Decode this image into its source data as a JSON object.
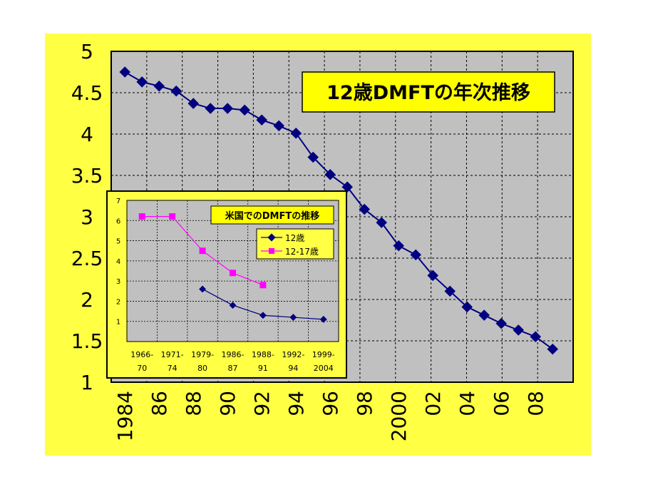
{
  "chart_data": [
    {
      "type": "line",
      "title": "12歳DMFTの年次推移",
      "xlabel": "",
      "ylabel": "",
      "x": [
        1984,
        1985,
        1986,
        1987,
        1988,
        1989,
        1990,
        1991,
        1992,
        1993,
        1994,
        1995,
        1996,
        1997,
        1998,
        1999,
        2000,
        2001,
        2002,
        2003,
        2004,
        2005,
        2006,
        2007,
        2008,
        2009
      ],
      "series": [
        {
          "name": "",
          "values": [
            4.75,
            4.63,
            4.58,
            4.52,
            4.37,
            4.31,
            4.31,
            4.29,
            4.17,
            4.1,
            4.01,
            3.72,
            3.51,
            3.36,
            3.09,
            2.93,
            2.65,
            2.54,
            2.29,
            2.1,
            1.91,
            1.81,
            1.71,
            1.63,
            1.55,
            1.4
          ]
        }
      ],
      "ylim": [
        1,
        5
      ],
      "yticks": [
        "5",
        "4.5",
        "4",
        "3.5",
        "3",
        "2.5",
        "2",
        "1.5",
        "1"
      ],
      "xticks": [
        "1984",
        "86",
        "88",
        "90",
        "92",
        "94",
        "96",
        "98",
        "2000",
        "02",
        "04",
        "06",
        "08"
      ],
      "grid": true,
      "colors": {
        "line": "#000080",
        "marker": "#000080",
        "plot_bg": "#c0c0c0",
        "frame_bg": "#ffff44",
        "title_bg": "#ffff00"
      }
    },
    {
      "type": "line",
      "title": "米国でのDMFTの推移",
      "categories_top": [
        "1966-",
        "1971-",
        "1979-",
        "1986-",
        "1988-",
        "1992-",
        "1999-"
      ],
      "categories_bottom": [
        "70",
        "74",
        "80",
        "87",
        "91",
        "94",
        "2004"
      ],
      "series": [
        {
          "name": "12歳",
          "values": [
            null,
            null,
            2.6,
            1.8,
            1.3,
            1.2,
            1.1
          ],
          "color": "#000080",
          "marker": "diamond"
        },
        {
          "name": "12-17歳",
          "values": [
            6.2,
            6.2,
            4.5,
            3.4,
            2.8,
            null,
            null
          ],
          "color": "#ff00ff",
          "marker": "square"
        }
      ],
      "ylim": [
        0,
        7
      ],
      "yticks": [
        "1",
        "2",
        "3",
        "4",
        "5",
        "6",
        "7"
      ],
      "grid": true,
      "legend": "top-right",
      "colors": {
        "plot_bg": "#c0c0c0",
        "frame_bg": "#ffff44"
      }
    }
  ]
}
